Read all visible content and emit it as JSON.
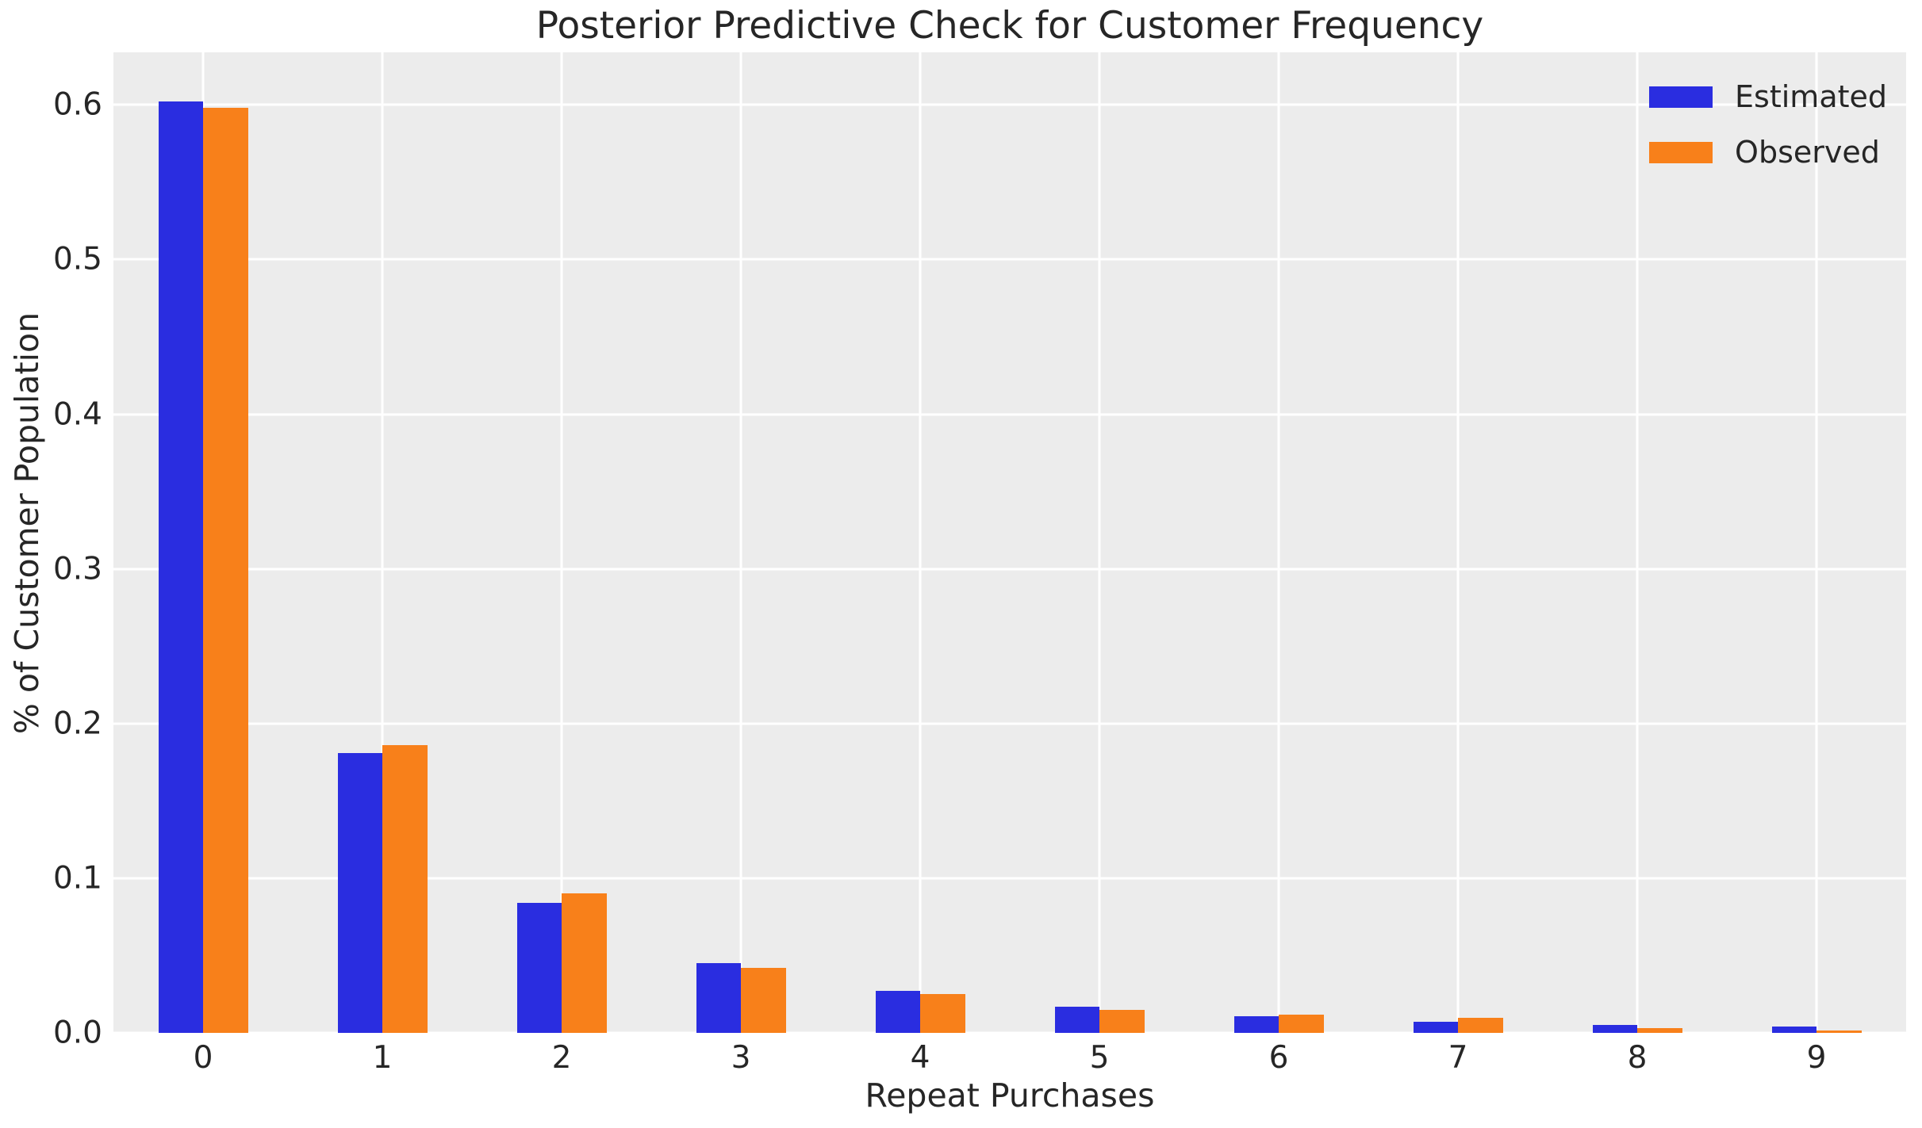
{
  "chart_data": {
    "type": "bar",
    "title": "Posterior Predictive Check for Customer Frequency",
    "xlabel": "Repeat Purchases",
    "ylabel": "% of Customer Population",
    "categories": [
      "0",
      "1",
      "2",
      "3",
      "4",
      "5",
      "6",
      "7",
      "8",
      "9"
    ],
    "series": [
      {
        "name": "Estimated",
        "color": "#2a2de0",
        "values": [
          0.602,
          0.181,
          0.084,
          0.045,
          0.027,
          0.017,
          0.011,
          0.007,
          0.005,
          0.004
        ]
      },
      {
        "name": "Observed",
        "color": "#f8801a",
        "values": [
          0.598,
          0.186,
          0.09,
          0.042,
          0.025,
          0.015,
          0.012,
          0.0095,
          0.003,
          0.0015
        ]
      }
    ],
    "ytick_labels": [
      "0.0",
      "0.1",
      "0.2",
      "0.3",
      "0.4",
      "0.5",
      "0.6"
    ],
    "ylim": [
      0,
      0.634
    ],
    "grid": "on",
    "legend_position": "upper right",
    "plot_bg_color": "#ececec",
    "grid_color": "#ffffff",
    "text_color": "#262626"
  }
}
